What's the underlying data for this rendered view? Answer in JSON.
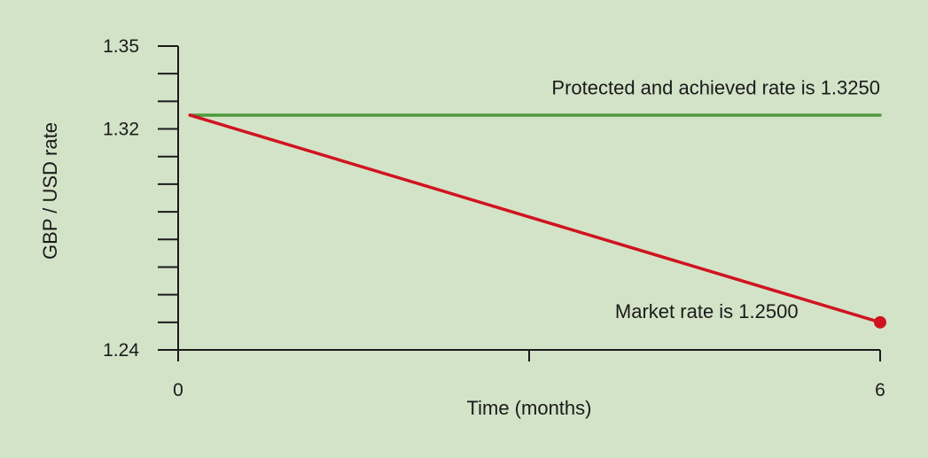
{
  "chart_data": {
    "type": "line",
    "title": "",
    "xlabel": "Time (months)",
    "ylabel": "GBP / USD rate",
    "xlim": [
      0,
      6
    ],
    "ylim": [
      1.24,
      1.35
    ],
    "x_ticks": [
      0,
      3,
      6
    ],
    "x_tick_labels": [
      "0",
      "",
      "6"
    ],
    "y_ticks": [
      1.24,
      1.25,
      1.26,
      1.27,
      1.28,
      1.29,
      1.3,
      1.31,
      1.32,
      1.33,
      1.34,
      1.35
    ],
    "y_tick_labels": [
      {
        "value": 1.24,
        "label": "1.24"
      },
      {
        "value": 1.32,
        "label": "1.32"
      },
      {
        "value": 1.35,
        "label": "1.35"
      }
    ],
    "grid": false,
    "series": [
      {
        "color": "#4e9a3a",
        "x": [
          0.1,
          6
        ],
        "y": [
          1.325,
          1.325
        ]
      },
      {
        "color": "#d0141f",
        "x": [
          0.1,
          6
        ],
        "y": [
          1.325,
          1.25
        ],
        "end_marker": true
      }
    ],
    "annotations": [
      {
        "text": "Protected and achieved rate is 1.3250",
        "x": 6,
        "y": 1.3325,
        "anchor": "end"
      },
      {
        "text": "Market rate is 1.2500",
        "x": 5.3,
        "y": 1.2515,
        "anchor": "end"
      }
    ]
  }
}
